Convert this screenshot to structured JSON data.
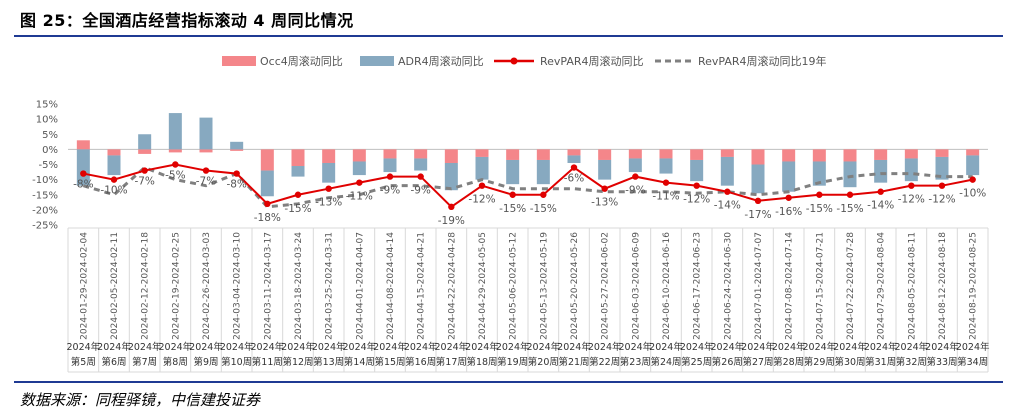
{
  "figure": {
    "title": "图 25：全国酒店经营指标滚动 4 周同比情况",
    "source": "数据来源：同程驿镜，中信建投证券"
  },
  "chart_data": {
    "type": "bar+line",
    "ylim": [
      -25,
      15
    ],
    "yticks": [
      15,
      10,
      5,
      0,
      -5,
      -10,
      -15,
      -20,
      -25
    ],
    "ytick_labels": [
      "15%",
      "10%",
      "5%",
      "0%",
      "-5%",
      "-10%",
      "-15%",
      "-20%",
      "-25%"
    ],
    "categories": [
      "2024-01-29-2024-02-04",
      "2024-02-05-2024-02-11",
      "2024-02-12-2024-02-18",
      "2024-02-19-2024-02-25",
      "2024-02-26-2024-03-03",
      "2024-03-04-2024-03-10",
      "2024-03-11-2024-03-17",
      "2024-03-18-2024-03-24",
      "2024-03-25-2024-03-31",
      "2024-04-01-2024-04-07",
      "2024-04-08-2024-04-14",
      "2024-04-15-2024-04-21",
      "2024-04-22-2024-04-28",
      "2024-04-29-2024-05-05",
      "2024-05-06-2024-05-12",
      "2024-05-13-2024-05-19",
      "2024-05-20-2024-05-26",
      "2024-05-27-2024-06-02",
      "2024-06-03-2024-06-09",
      "2024-06-10-2024-06-16",
      "2024-06-17-2024-06-23",
      "2024-06-24-2024-06-30",
      "2024-07-01-2024-07-07",
      "2024-07-08-2024-07-14",
      "2024-07-15-2024-07-21",
      "2024-07-22-2024-07-28",
      "2024-07-29-2024-08-04",
      "2024-08-05-2024-08-11",
      "2024-08-12-2024-08-18",
      "2024-08-19-2024-08-25"
    ],
    "week_labels": [
      "2024年第5周",
      "2024年第6周",
      "2024年第7周",
      "2024年第8周",
      "2024年第9周",
      "2024年第10周",
      "2024年第11周",
      "2024年第12周",
      "2024年第13周",
      "2024年第14周",
      "2024年第15周",
      "2024年第16周",
      "2024年第17周",
      "2024年第18周",
      "2024年第19周",
      "2024年第20周",
      "2024年第21周",
      "2024年第22周",
      "2024年第23周",
      "2024年第24周",
      "2024年第25周",
      "2024年第26周",
      "2024年第27周",
      "2024年第28周",
      "2024年第29周",
      "2024年第30周",
      "2024年第31周",
      "2024年第32周",
      "2024年第33周",
      "2024年第34周"
    ],
    "series": [
      {
        "name": "Occ4周滚动同比",
        "kind": "bar",
        "color": "#f4868a",
        "values": [
          3,
          -2,
          -1.5,
          -1,
          -1,
          -0.5,
          -7,
          -5.5,
          -4.5,
          -4,
          -3,
          -3,
          -4.5,
          -2.5,
          -3.5,
          -3.5,
          -2,
          -3.5,
          -3,
          -3,
          -3.5,
          -2.5,
          -5,
          -4,
          -4,
          -4,
          -3.5,
          -3,
          -2.5,
          -2
        ]
      },
      {
        "name": "ADR4周滚动同比",
        "kind": "bar",
        "color": "#87a9c0",
        "values": [
          -12,
          -6.5,
          5,
          12,
          10.5,
          2.5,
          -8.5,
          -3.5,
          -6.5,
          -4.5,
          -4.5,
          -4,
          -9,
          -7.5,
          -8,
          -8,
          -2.5,
          -6.5,
          -4.5,
          -5,
          -7,
          -9.5,
          -9.5,
          -10,
          -8,
          -8.5,
          -7.5,
          -7.5,
          -7.5,
          -6.5
        ]
      },
      {
        "name": "RevPAR4周滚动同比",
        "kind": "line",
        "color": "#e00000",
        "values": [
          -8,
          -10,
          -7,
          -5,
          -7,
          -8,
          -18,
          -15,
          -13,
          -11,
          -9,
          -9,
          -19,
          -12,
          -15,
          -15,
          -6,
          -13,
          -9,
          -11,
          -12,
          -14,
          -17,
          -16,
          -15,
          -15,
          -14,
          -12,
          -12,
          -10
        ]
      },
      {
        "name": "RevPAR4周滚动同比19年",
        "kind": "dashed-line",
        "color": "#808080",
        "values": [
          -12,
          -15,
          -6,
          -10,
          -12,
          -8,
          -19,
          -18,
          -16,
          -15,
          -12,
          -12,
          -13,
          -10,
          -13,
          -13,
          -13,
          -14,
          -14,
          -14,
          -14.5,
          -14,
          -15,
          -14,
          -11,
          -9,
          -8,
          -8,
          -9,
          -9
        ]
      }
    ],
    "data_labels": [
      "-8%",
      "-10%",
      "-7%",
      "-5%",
      "-7%",
      "-8%",
      "-18%",
      "-15%",
      "-13%",
      "-11%",
      "-9%",
      "-9%",
      "-19%",
      "-12%",
      "-15%",
      "-15%",
      "-6%",
      "-13%",
      "-9%",
      "-11%",
      "-12%",
      "-14%",
      "-17%",
      "-16%",
      "-15%",
      "-15%",
      "-14%",
      "-12%",
      "-12%",
      "-10%"
    ],
    "legend_position": "top"
  }
}
